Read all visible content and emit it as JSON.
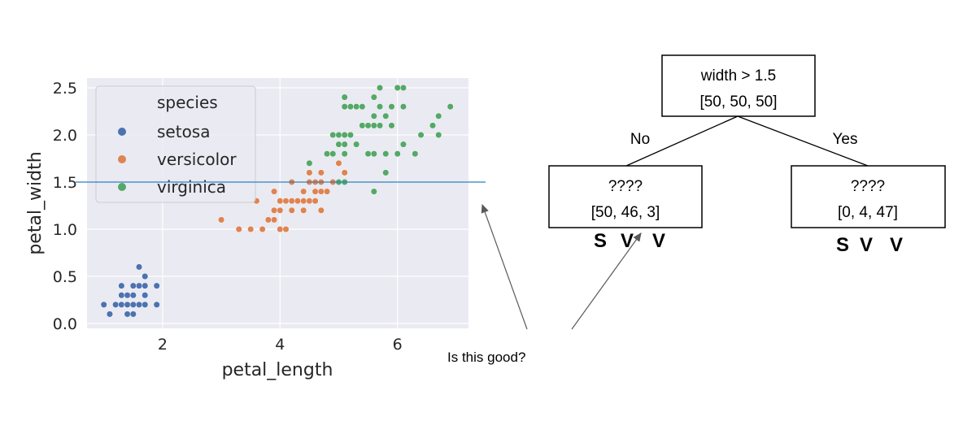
{
  "chart_data": {
    "type": "scatter",
    "xlabel": "petal_length",
    "ylabel": "petal_width",
    "xlim": [
      0.7,
      7.2
    ],
    "ylim": [
      -0.03,
      2.62
    ],
    "xticks": [
      2,
      4,
      6
    ],
    "yticks": [
      "0.0",
      "0.5",
      "1.0",
      "1.5",
      "2.0",
      "2.5"
    ],
    "grid": true,
    "legend": {
      "title": "species",
      "placement": "top-left"
    },
    "threshold_line": {
      "y": 1.5,
      "color": "#2f7fc1"
    },
    "series": [
      {
        "name": "setosa",
        "color": "#4c72b0",
        "points": [
          [
            1.1,
            0.1
          ],
          [
            1.4,
            0.1
          ],
          [
            1.5,
            0.1
          ],
          [
            1.0,
            0.2
          ],
          [
            1.2,
            0.2
          ],
          [
            1.3,
            0.2
          ],
          [
            1.4,
            0.2
          ],
          [
            1.5,
            0.2
          ],
          [
            1.6,
            0.2
          ],
          [
            1.7,
            0.2
          ],
          [
            1.9,
            0.2
          ],
          [
            1.3,
            0.3
          ],
          [
            1.4,
            0.3
          ],
          [
            1.5,
            0.3
          ],
          [
            1.7,
            0.3
          ],
          [
            1.3,
            0.4
          ],
          [
            1.5,
            0.4
          ],
          [
            1.6,
            0.4
          ],
          [
            1.7,
            0.4
          ],
          [
            1.9,
            0.4
          ],
          [
            1.7,
            0.5
          ],
          [
            1.6,
            0.6
          ]
        ]
      },
      {
        "name": "versicolor",
        "color": "#dd8452",
        "points": [
          [
            3.3,
            1.0
          ],
          [
            3.5,
            1.0
          ],
          [
            3.7,
            1.0
          ],
          [
            4.0,
            1.0
          ],
          [
            4.1,
            1.0
          ],
          [
            3.0,
            1.1
          ],
          [
            3.8,
            1.1
          ],
          [
            3.9,
            1.1
          ],
          [
            3.9,
            1.2
          ],
          [
            4.0,
            1.2
          ],
          [
            4.2,
            1.2
          ],
          [
            4.4,
            1.2
          ],
          [
            4.7,
            1.2
          ],
          [
            3.6,
            1.3
          ],
          [
            4.0,
            1.3
          ],
          [
            4.1,
            1.3
          ],
          [
            4.2,
            1.3
          ],
          [
            4.3,
            1.3
          ],
          [
            4.4,
            1.3
          ],
          [
            4.5,
            1.3
          ],
          [
            4.6,
            1.3
          ],
          [
            3.9,
            1.4
          ],
          [
            4.4,
            1.4
          ],
          [
            4.6,
            1.4
          ],
          [
            4.7,
            1.4
          ],
          [
            4.8,
            1.4
          ],
          [
            4.2,
            1.5
          ],
          [
            4.5,
            1.5
          ],
          [
            4.6,
            1.5
          ],
          [
            4.7,
            1.5
          ],
          [
            4.9,
            1.5
          ],
          [
            4.5,
            1.6
          ],
          [
            4.7,
            1.6
          ],
          [
            5.1,
            1.6
          ],
          [
            5.0,
            1.7
          ]
        ]
      },
      {
        "name": "virginica",
        "color": "#55a868",
        "points": [
          [
            5.6,
            1.4
          ],
          [
            5.0,
            1.5
          ],
          [
            5.1,
            1.5
          ],
          [
            5.8,
            1.6
          ],
          [
            4.5,
            1.7
          ],
          [
            4.8,
            1.8
          ],
          [
            4.9,
            1.8
          ],
          [
            5.1,
            1.8
          ],
          [
            5.5,
            1.8
          ],
          [
            5.6,
            1.8
          ],
          [
            5.8,
            1.8
          ],
          [
            6.0,
            1.8
          ],
          [
            6.3,
            1.8
          ],
          [
            5.0,
            1.9
          ],
          [
            5.1,
            1.9
          ],
          [
            5.3,
            1.9
          ],
          [
            6.1,
            1.9
          ],
          [
            4.9,
            2.0
          ],
          [
            5.0,
            2.0
          ],
          [
            5.1,
            2.0
          ],
          [
            5.2,
            2.0
          ],
          [
            6.4,
            2.0
          ],
          [
            6.7,
            2.0
          ],
          [
            5.4,
            2.1
          ],
          [
            5.5,
            2.1
          ],
          [
            5.6,
            2.1
          ],
          [
            5.7,
            2.1
          ],
          [
            5.9,
            2.1
          ],
          [
            6.6,
            2.1
          ],
          [
            5.6,
            2.2
          ],
          [
            5.8,
            2.2
          ],
          [
            6.7,
            2.2
          ],
          [
            5.1,
            2.3
          ],
          [
            5.2,
            2.3
          ],
          [
            5.3,
            2.3
          ],
          [
            5.4,
            2.3
          ],
          [
            5.7,
            2.3
          ],
          [
            5.9,
            2.3
          ],
          [
            6.1,
            2.3
          ],
          [
            6.9,
            2.3
          ],
          [
            5.1,
            2.4
          ],
          [
            5.6,
            2.4
          ],
          [
            5.7,
            2.5
          ],
          [
            6.0,
            2.5
          ],
          [
            6.1,
            2.5
          ]
        ]
      }
    ]
  },
  "annotation": {
    "question": "Is this good?"
  },
  "tree": {
    "root": {
      "rule": "width > 1.5",
      "counts": "[50, 50, 50]"
    },
    "edge_no": "No",
    "edge_yes": "Yes",
    "left": {
      "rule": "????",
      "counts": "[50, 46, 3]"
    },
    "right": {
      "rule": "????",
      "counts": "[0, 4, 47]"
    },
    "class_letters": [
      {
        "letter": "S",
        "color": "#1e88e5"
      },
      {
        "letter": "V",
        "color": "#ffc000"
      },
      {
        "letter": "V",
        "color": "#7dc242"
      }
    ]
  }
}
